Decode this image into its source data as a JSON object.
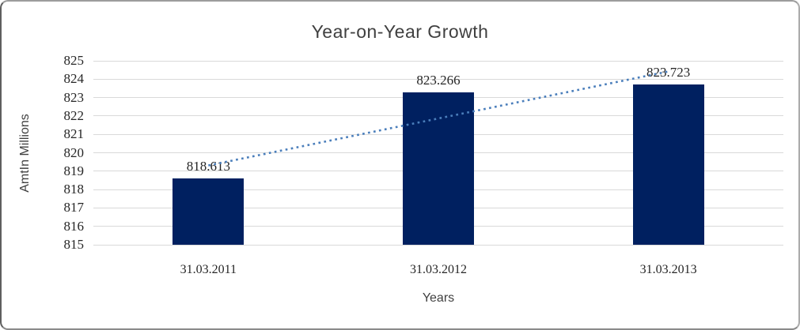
{
  "chart_data": {
    "type": "bar",
    "title": "Year-on-Year Growth",
    "xlabel": "Years",
    "ylabel": "AmtIn Millions",
    "categories": [
      "31.03.2011",
      "31.03.2012",
      "31.03.2013"
    ],
    "values": [
      818.613,
      823.266,
      823.723
    ],
    "data_labels": [
      "818.613",
      "823.266",
      "823.723"
    ],
    "ylim": [
      815,
      825
    ],
    "ytick_step": 1,
    "grid": true,
    "legend": "none",
    "trendline": {
      "style": "dotted",
      "y_at_first_category": 819.31,
      "y_at_last_category": 824.42
    },
    "colors": {
      "bar": "#002060",
      "trendline": "#4A7EBB",
      "gridline": "#D9D9D9",
      "tick_text": "#262626",
      "title_text": "#404040",
      "border": "#ABABAB"
    }
  }
}
